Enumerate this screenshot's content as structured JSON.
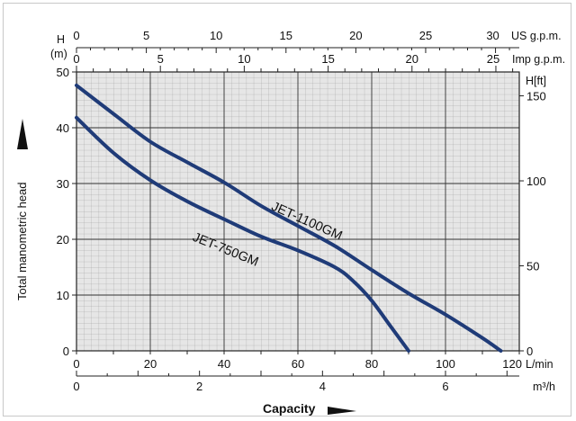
{
  "chart_data": {
    "type": "line",
    "ylabel": "Total manometric head",
    "xlabel": "Capacity",
    "y_unit_left": "(m)",
    "y_symbol_left": "H",
    "y_unit_right": "H[ft]",
    "x_unit_lmin": "L/min",
    "x_unit_m3h": "m³/h",
    "x_unit_us": "US g.p.m.",
    "x_unit_imp": "Imp g.p.m.",
    "xlim": [
      0,
      120
    ],
    "ylim": [
      0,
      50
    ],
    "grid": true,
    "axes": {
      "y_left_ticks": [
        "0",
        "10",
        "20",
        "30",
        "40",
        "50"
      ],
      "y_right_ticks": [
        "0",
        "50",
        "100",
        "150"
      ],
      "x_lmin_ticks": [
        "0",
        "20",
        "40",
        "60",
        "80",
        "100",
        "120"
      ],
      "x_m3h_ticks": [
        "0",
        "2",
        "4",
        "6"
      ],
      "x_us_ticks": [
        "0",
        "5",
        "10",
        "15",
        "20",
        "25",
        "30"
      ],
      "x_imp_ticks": [
        "0",
        "5",
        "10",
        "15",
        "20",
        "25"
      ]
    },
    "series": [
      {
        "name": "JET-1100GM",
        "x": [
          0,
          10,
          20,
          30,
          40,
          50,
          60,
          70,
          80,
          90,
          100,
          110,
          115
        ],
        "y": [
          47.6,
          42.5,
          37.5,
          33.8,
          30.2,
          26.0,
          22.4,
          18.8,
          14.5,
          10.3,
          6.5,
          2.3,
          0
        ]
      },
      {
        "name": "JET-750GM",
        "x": [
          0,
          10,
          20,
          30,
          40,
          50,
          60,
          70,
          75,
          80,
          85,
          90
        ],
        "y": [
          41.8,
          35.5,
          30.6,
          26.8,
          23.6,
          20.5,
          18.0,
          15.0,
          12.5,
          9.0,
          4.5,
          0
        ]
      }
    ]
  }
}
